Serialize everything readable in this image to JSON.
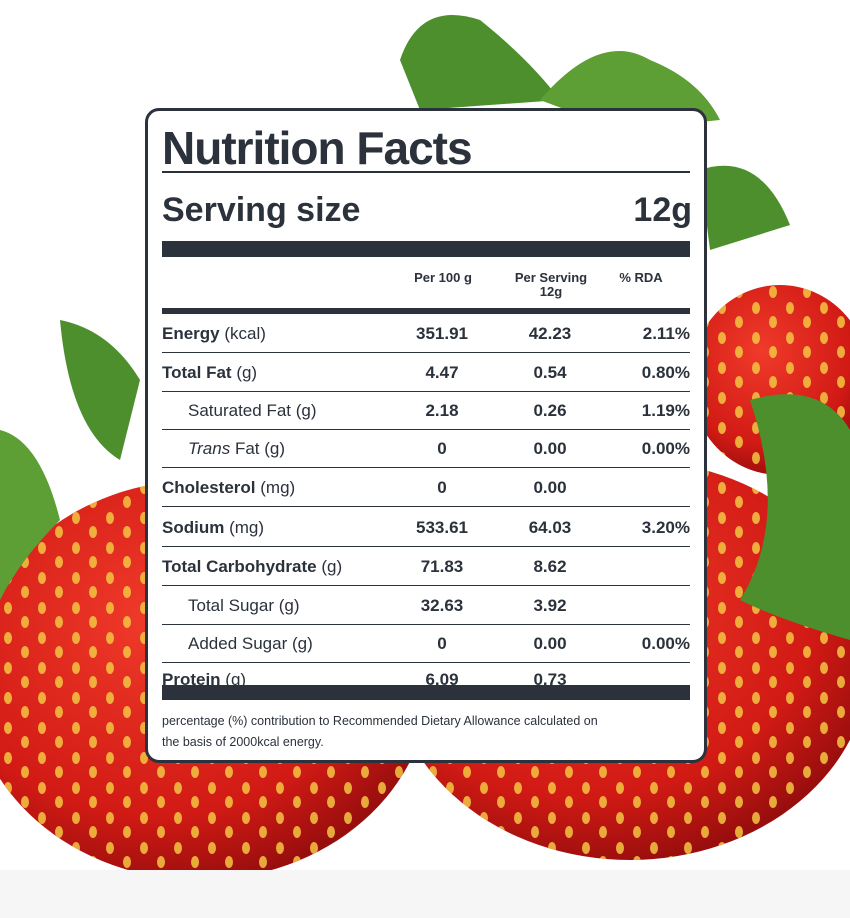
{
  "title": "Nutrition Facts",
  "serving": {
    "label": "Serving size",
    "value": "12g"
  },
  "columns": {
    "per_100g": "Per 100 g",
    "per_serving": [
      "Per Serving",
      "12g"
    ],
    "rda": "% RDA"
  },
  "rows": [
    {
      "name": "Energy",
      "unit": "(kcal)",
      "per_100g": "351.91",
      "per_serving": "42.23",
      "rda": "2.11%"
    },
    {
      "name": "Total Fat",
      "unit": "(g)",
      "per_100g": "4.47",
      "per_serving": "0.54",
      "rda": "0.80%"
    },
    {
      "name": "Saturated Fat",
      "unit": "(g)",
      "per_100g": "2.18",
      "per_serving": "0.26",
      "rda": "1.19%"
    },
    {
      "name": "Trans",
      "unit": "Fat (g)",
      "per_100g": "0",
      "per_serving": "0.00",
      "rda": "0.00%"
    },
    {
      "name": "Cholesterol",
      "unit": "(mg)",
      "per_100g": "0",
      "per_serving": "0.00"
    },
    {
      "name": "Sodium",
      "unit": "(mg)",
      "per_100g": "533.61",
      "per_serving": "64.03",
      "rda": "3.20%"
    },
    {
      "name": "Total Carbohydrate",
      "unit": "(g)",
      "per_100g": "71.83",
      "per_serving": "8.62"
    },
    {
      "name": "Total Sugar",
      "unit": "(g)",
      "per_100g": "32.63",
      "per_serving": "3.92"
    },
    {
      "name": "Added Sugar",
      "unit": "(g)",
      "per_100g": "0",
      "per_serving": "0.00",
      "rda": "0.00%"
    },
    {
      "name": "Protein",
      "unit": "(g)",
      "per_100g": "6.09",
      "per_serving": "0.73"
    }
  ],
  "footnote": [
    "percentage (%) contribution to Recommended Dietary Allowance calculated on",
    "the basis of 2000kcal energy."
  ]
}
